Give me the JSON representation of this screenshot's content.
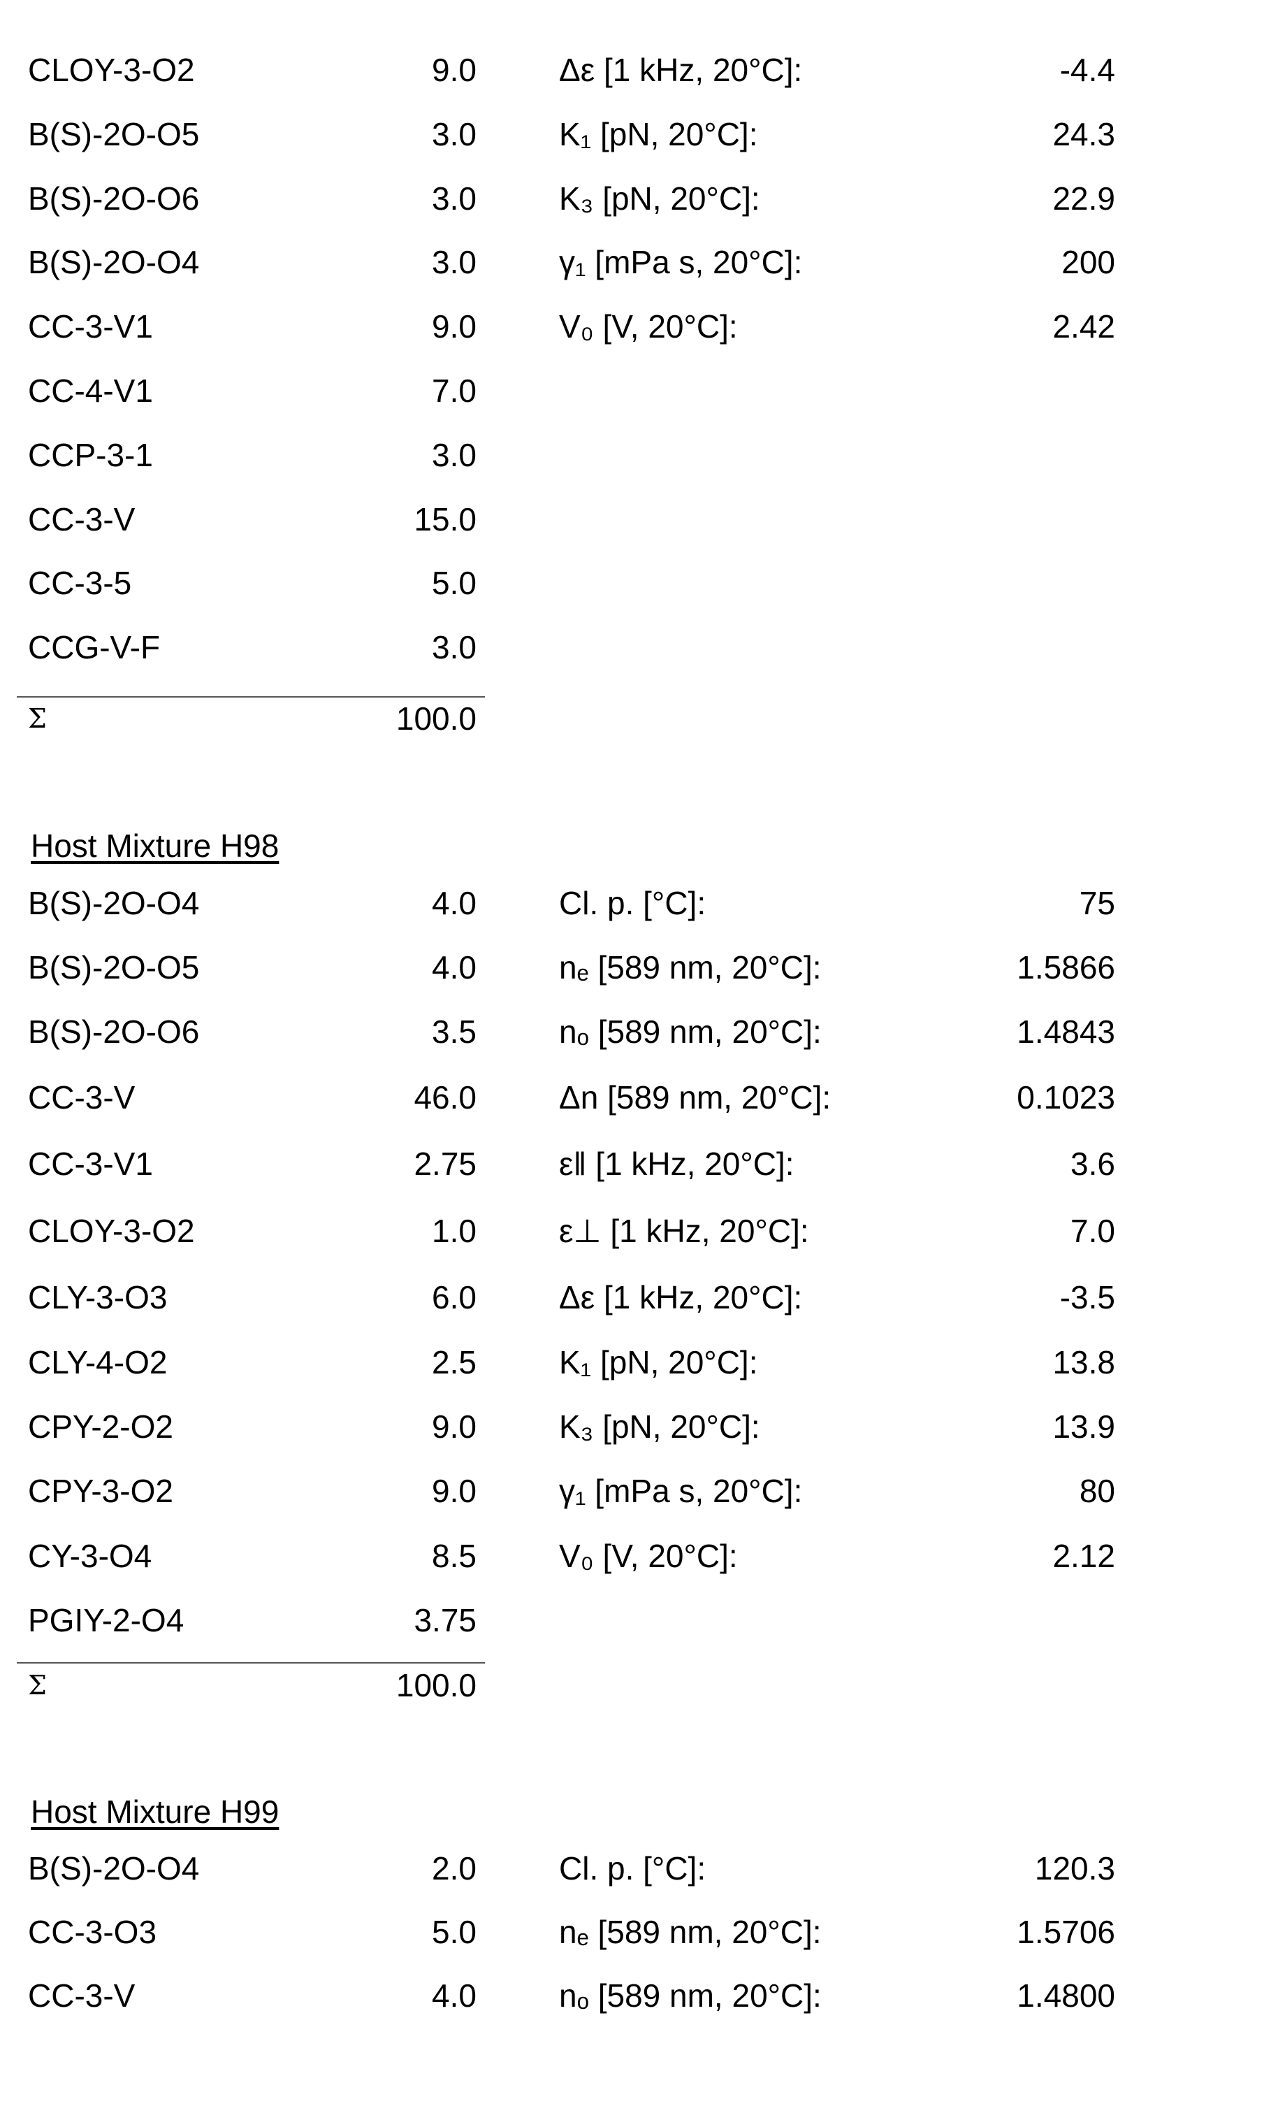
{
  "blocks": [
    {
      "id": "mixture-continued",
      "title": "",
      "components": [
        {
          "name": "CLOY-3-O2",
          "value": "9.0"
        },
        {
          "name": "B(S)-2O-O5",
          "value": "3.0"
        },
        {
          "name": "B(S)-2O-O6",
          "value": "3.0"
        },
        {
          "name": "B(S)-2O-O4",
          "value": "3.0"
        },
        {
          "name": "CC-3-V1",
          "value": "9.0"
        },
        {
          "name": "CC-4-V1",
          "value": "7.0"
        },
        {
          "name": "CCP-3-1",
          "value": "3.0"
        },
        {
          "name": "CC-3-V",
          "value": "15.0"
        },
        {
          "name": "CC-3-5",
          "value": "5.0"
        },
        {
          "name": "CCG-V-F",
          "value": "3.0"
        }
      ],
      "properties": [
        {
          "label": "Δε [1 kHz, 20°C]:",
          "value": "-4.4"
        },
        {
          "label": "K₁ [pN, 20°C]:",
          "value": "24.3"
        },
        {
          "label": "K₃ [pN, 20°C]:",
          "value": "22.9"
        },
        {
          "label": "γ₁ [mPa s, 20°C]:",
          "value": "200"
        },
        {
          "label": "V₀ [V, 20°C]:",
          "value": "2.42"
        }
      ],
      "sum": {
        "symbol": "Σ",
        "value": "100.0"
      }
    },
    {
      "id": "host-mixture-h98",
      "title": "Host Mixture H98",
      "components": [
        {
          "name": "B(S)-2O-O4",
          "value": "4.0"
        },
        {
          "name": "B(S)-2O-O5",
          "value": "4.0"
        },
        {
          "name": "B(S)-2O-O6",
          "value": "3.5"
        },
        {
          "name": "CC-3-V",
          "value": "46.0"
        },
        {
          "name": "CC-3-V1",
          "value": "2.75"
        },
        {
          "name": "CLOY-3-O2",
          "value": "1.0"
        },
        {
          "name": "CLY-3-O3",
          "value": "6.0"
        },
        {
          "name": "CLY-4-O2",
          "value": "2.5"
        },
        {
          "name": "CPY-2-O2",
          "value": "9.0"
        },
        {
          "name": "CPY-3-O2",
          "value": "9.0"
        },
        {
          "name": "CY-3-O4",
          "value": "8.5"
        },
        {
          "name": "PGIY-2-O4",
          "value": "3.75"
        }
      ],
      "properties": [
        {
          "label": "Cl. p. [°C]:",
          "value": "75"
        },
        {
          "label": "nₑ [589 nm, 20°C]:",
          "value": "1.5866"
        },
        {
          "label": "nₒ [589 nm, 20°C]:",
          "value": "1.4843"
        },
        {
          "label": "Δn [589 nm, 20°C]:",
          "value": "0.1023"
        },
        {
          "label": "ε‖ [1 kHz, 20°C]:",
          "value": "3.6"
        },
        {
          "label": "ε⊥ [1 kHz, 20°C]:",
          "value": "7.0"
        },
        {
          "label": "Δε [1 kHz, 20°C]:",
          "value": "-3.5"
        },
        {
          "label": "K₁ [pN, 20°C]:",
          "value": "13.8"
        },
        {
          "label": "K₃ [pN, 20°C]:",
          "value": "13.9"
        },
        {
          "label": "γ₁ [mPa s, 20°C]:",
          "value": "80"
        },
        {
          "label": "V₀ [V, 20°C]:",
          "value": "2.12"
        }
      ],
      "sum": {
        "symbol": "Σ",
        "value": "100.0"
      }
    },
    {
      "id": "host-mixture-h99",
      "title": "Host Mixture H99",
      "components": [
        {
          "name": "B(S)-2O-O4",
          "value": "2.0"
        },
        {
          "name": "CC-3-O3",
          "value": "5.0"
        },
        {
          "name": "CC-3-V",
          "value": "4.0"
        }
      ],
      "properties": [
        {
          "label": "Cl. p. [°C]:",
          "value": "120.3"
        },
        {
          "label": "nₑ [589 nm, 20°C]:",
          "value": "1.5706"
        },
        {
          "label": "nₒ [589 nm, 20°C]:",
          "value": "1.4800"
        }
      ]
    }
  ]
}
